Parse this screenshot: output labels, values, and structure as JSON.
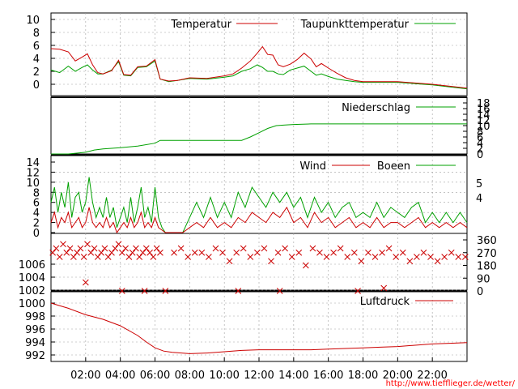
{
  "source_url": "http://www.tiefflieger.de/wetter/",
  "colors": {
    "red": "#cc0000",
    "green": "#00a000",
    "grid": "#a0a0a0"
  },
  "x_axis": {
    "hour_range": [
      0,
      24
    ],
    "tick_labels": [
      "02:00",
      "04:00",
      "06:00",
      "08:00",
      "10:00",
      "12:00",
      "14:00",
      "16:00",
      "18:00",
      "20:00",
      "22:00"
    ]
  },
  "chart_data": [
    {
      "type": "line",
      "name": "temperature",
      "x_unit": "hours",
      "ylim": [
        -2,
        10.5
      ],
      "y_ticks": [
        0,
        2,
        4,
        6,
        8,
        10
      ],
      "legend_position": "top",
      "grid": true,
      "series": [
        {
          "name": "Temperatur",
          "color": "#cc0000",
          "x": [
            0,
            0.5,
            1,
            1.4,
            1.8,
            2.1,
            2.4,
            2.7,
            3,
            3.5,
            3.9,
            4.2,
            4.6,
            5,
            5.5,
            6,
            6.3,
            6.8,
            7.3,
            8,
            9,
            10,
            10.5,
            11,
            11.5,
            11.9,
            12.2,
            12.5,
            12.8,
            13.1,
            13.4,
            13.8,
            14.2,
            14.6,
            15,
            15.3,
            15.6,
            16,
            16.5,
            17,
            17.5,
            18,
            19,
            20,
            21,
            22,
            23,
            24
          ],
          "values": [
            5.5,
            5.4,
            5.0,
            3.6,
            4.2,
            4.7,
            3.0,
            1.8,
            1.6,
            2.1,
            3.7,
            1.5,
            1.4,
            2.7,
            2.8,
            3.8,
            0.8,
            0.5,
            0.6,
            1.0,
            0.9,
            1.3,
            1.6,
            2.5,
            3.6,
            4.8,
            5.8,
            4.6,
            4.5,
            3.0,
            2.7,
            3.1,
            3.8,
            4.8,
            3.9,
            2.7,
            3.2,
            2.5,
            1.7,
            1.0,
            0.6,
            0.4,
            0.4,
            0.4,
            0.2,
            0.0,
            -0.3,
            -0.6
          ]
        },
        {
          "name": "Taupunkttemperatur",
          "color": "#00a000",
          "x": [
            0,
            0.5,
            1,
            1.4,
            1.8,
            2.1,
            2.4,
            2.7,
            3,
            3.5,
            3.9,
            4.2,
            4.6,
            5,
            5.5,
            6,
            6.3,
            6.8,
            7.3,
            8,
            9,
            10,
            10.5,
            11,
            11.5,
            11.9,
            12.2,
            12.5,
            12.8,
            13.1,
            13.4,
            13.8,
            14.2,
            14.6,
            15,
            15.3,
            15.6,
            16,
            16.5,
            17,
            17.5,
            18,
            19,
            20,
            21,
            22,
            23,
            24
          ],
          "values": [
            2.2,
            1.8,
            2.8,
            2.0,
            2.6,
            3.0,
            2.2,
            1.6,
            1.6,
            2.2,
            3.5,
            1.4,
            1.3,
            2.6,
            2.7,
            3.6,
            0.8,
            0.4,
            0.6,
            0.9,
            0.8,
            1.1,
            1.3,
            2.0,
            2.4,
            3.0,
            2.6,
            2.0,
            2.0,
            1.6,
            1.5,
            2.2,
            2.5,
            2.8,
            2.0,
            1.4,
            1.6,
            1.2,
            0.8,
            0.6,
            0.4,
            0.3,
            0.3,
            0.3,
            0.1,
            -0.1,
            -0.4,
            -0.7
          ]
        }
      ]
    },
    {
      "type": "line",
      "name": "precipitation",
      "x_unit": "hours",
      "ylim": [
        0,
        18
      ],
      "y_ticks": [
        0,
        2,
        4,
        6,
        8,
        10,
        12,
        14,
        16,
        18
      ],
      "y_axis_side": "right",
      "legend_position": "top-right",
      "grid": true,
      "series": [
        {
          "name": "Niederschlag",
          "color": "#00a000",
          "x": [
            0,
            1,
            2,
            2.5,
            3,
            4,
            5,
            6,
            6.3,
            7,
            8,
            9,
            10,
            11,
            11.5,
            12,
            12.5,
            13,
            13.5,
            14,
            15,
            16,
            17,
            18,
            20,
            22,
            24
          ],
          "values": [
            0,
            0,
            0.6,
            1.4,
            1.8,
            2.2,
            2.8,
            3.8,
            4.8,
            4.8,
            4.8,
            4.8,
            4.8,
            4.8,
            6.0,
            7.5,
            9.0,
            10.0,
            10.2,
            10.4,
            10.6,
            10.6,
            10.6,
            10.6,
            10.6,
            10.6,
            10.6
          ]
        }
      ]
    },
    {
      "type": "line",
      "name": "wind",
      "x_unit": "hours",
      "ylim": [
        0,
        14
      ],
      "y_ticks": [
        0,
        2,
        4,
        6,
        8,
        10,
        12,
        14
      ],
      "right_tick_labels": [
        "5",
        "4"
      ],
      "legend_position": "top",
      "grid": true,
      "series": [
        {
          "name": "Wind",
          "color": "#cc0000",
          "x": [
            0,
            0.2,
            0.4,
            0.6,
            0.8,
            1,
            1.2,
            1.4,
            1.6,
            1.8,
            2,
            2.2,
            2.4,
            2.6,
            2.8,
            3,
            3.2,
            3.4,
            3.6,
            3.8,
            4,
            4.2,
            4.4,
            4.6,
            4.8,
            5,
            5.2,
            5.4,
            5.6,
            5.8,
            6,
            6.2,
            6.4,
            6.6,
            6.8,
            7.0,
            7.6,
            8,
            8.4,
            8.8,
            9.2,
            9.6,
            10,
            10.4,
            10.8,
            11.2,
            11.6,
            12,
            12.4,
            12.8,
            13.2,
            13.6,
            14,
            14.4,
            14.8,
            15.2,
            15.6,
            16,
            16.4,
            16.8,
            17.2,
            17.6,
            18,
            18.4,
            18.8,
            19.2,
            19.6,
            20,
            20.4,
            20.8,
            21.2,
            21.6,
            22,
            22.4,
            22.8,
            23.2,
            23.6,
            24
          ],
          "values": [
            2,
            4,
            1,
            3,
            2,
            4,
            1,
            2,
            3,
            1,
            2,
            5,
            2,
            1,
            2,
            1,
            3,
            1,
            2,
            0,
            1,
            2,
            1,
            3,
            1,
            2,
            4,
            1,
            2,
            1,
            3,
            1,
            0.5,
            0,
            0,
            0,
            0,
            1,
            2,
            1,
            3,
            1,
            2,
            1,
            3,
            2,
            4,
            3,
            2,
            4,
            3,
            5,
            2,
            3,
            1,
            4,
            2,
            3,
            1,
            2,
            3,
            1,
            2,
            1,
            3,
            1,
            2,
            2,
            1,
            2,
            3,
            1,
            2,
            1,
            2,
            1,
            2,
            1
          ]
        },
        {
          "name": "Boeen",
          "color": "#00a000",
          "x": [
            0,
            0.2,
            0.4,
            0.6,
            0.8,
            1,
            1.2,
            1.4,
            1.6,
            1.8,
            2,
            2.2,
            2.4,
            2.6,
            2.8,
            3,
            3.2,
            3.4,
            3.6,
            3.8,
            4,
            4.2,
            4.4,
            4.6,
            4.8,
            5,
            5.2,
            5.4,
            5.6,
            5.8,
            6,
            6.2,
            6.4,
            6.6,
            6.8,
            7.0,
            7.6,
            8,
            8.4,
            8.8,
            9.2,
            9.6,
            10,
            10.4,
            10.8,
            11.2,
            11.6,
            12,
            12.4,
            12.8,
            13.2,
            13.6,
            14,
            14.4,
            14.8,
            15.2,
            15.6,
            16,
            16.4,
            16.8,
            17.2,
            17.6,
            18,
            18.4,
            18.8,
            19.2,
            19.6,
            20,
            20.4,
            20.8,
            21.2,
            21.6,
            22,
            22.4,
            22.8,
            23.2,
            23.6,
            24
          ],
          "values": [
            6,
            9,
            4,
            8,
            5,
            10,
            3,
            7,
            8,
            4,
            6,
            11,
            6,
            3,
            5,
            3,
            7,
            3,
            5,
            1,
            3,
            5,
            2,
            7,
            2,
            5,
            9,
            3,
            5,
            2,
            9,
            3,
            1,
            0,
            0,
            0,
            0,
            3,
            6,
            3,
            7,
            3,
            6,
            3,
            8,
            5,
            9,
            7,
            5,
            8,
            6,
            8,
            5,
            7,
            3,
            7,
            4,
            6,
            3,
            5,
            6,
            3,
            4,
            3,
            6,
            3,
            5,
            4,
            3,
            5,
            6,
            2,
            4,
            2,
            4,
            2,
            4,
            2
          ]
        }
      ]
    },
    {
      "type": "scatter",
      "name": "wind_direction",
      "x_unit": "hours",
      "ylim": [
        0,
        360
      ],
      "y_ticks": [
        0,
        90,
        180,
        270,
        360
      ],
      "y_axis_side": "right",
      "marker": "x",
      "color": "#cc0000",
      "points": [
        [
          0.1,
          270
        ],
        [
          0.3,
          300
        ],
        [
          0.5,
          240
        ],
        [
          0.7,
          330
        ],
        [
          0.9,
          270
        ],
        [
          1.1,
          300
        ],
        [
          1.3,
          240
        ],
        [
          1.5,
          270
        ],
        [
          1.7,
          300
        ],
        [
          1.9,
          240
        ],
        [
          2.1,
          330
        ],
        [
          2.3,
          270
        ],
        [
          2.5,
          300
        ],
        [
          2.7,
          240
        ],
        [
          2.9,
          270
        ],
        [
          3.1,
          300
        ],
        [
          3.3,
          240
        ],
        [
          3.5,
          270
        ],
        [
          3.7,
          300
        ],
        [
          3.9,
          330
        ],
        [
          4.1,
          270
        ],
        [
          4.3,
          300
        ],
        [
          4.5,
          240
        ],
        [
          4.7,
          270
        ],
        [
          4.9,
          300
        ],
        [
          5.1,
          240
        ],
        [
          5.3,
          270
        ],
        [
          5.5,
          300
        ],
        [
          5.7,
          270
        ],
        [
          5.9,
          240
        ],
        [
          6.1,
          300
        ],
        [
          6.3,
          270
        ],
        [
          7.1,
          270
        ],
        [
          7.5,
          300
        ],
        [
          7.9,
          240
        ],
        [
          8.3,
          270
        ],
        [
          8.7,
          270
        ],
        [
          9.1,
          240
        ],
        [
          9.5,
          300
        ],
        [
          9.9,
          270
        ],
        [
          10.3,
          210
        ],
        [
          10.7,
          270
        ],
        [
          11.1,
          300
        ],
        [
          11.5,
          240
        ],
        [
          11.9,
          270
        ],
        [
          12.3,
          300
        ],
        [
          12.7,
          210
        ],
        [
          13.1,
          270
        ],
        [
          13.5,
          300
        ],
        [
          13.9,
          240
        ],
        [
          14.3,
          270
        ],
        [
          14.7,
          180
        ],
        [
          15.1,
          300
        ],
        [
          15.5,
          270
        ],
        [
          15.9,
          240
        ],
        [
          16.3,
          270
        ],
        [
          16.7,
          300
        ],
        [
          17.1,
          240
        ],
        [
          17.5,
          270
        ],
        [
          17.9,
          210
        ],
        [
          18.3,
          270
        ],
        [
          18.7,
          240
        ],
        [
          19.1,
          270
        ],
        [
          19.5,
          300
        ],
        [
          19.9,
          240
        ],
        [
          20.3,
          270
        ],
        [
          20.7,
          210
        ],
        [
          21.1,
          240
        ],
        [
          21.5,
          270
        ],
        [
          21.9,
          240
        ],
        [
          22.3,
          210
        ],
        [
          22.7,
          240
        ],
        [
          23.1,
          270
        ],
        [
          23.5,
          240
        ],
        [
          23.9,
          240
        ],
        [
          2.0,
          60
        ],
        [
          4.1,
          0
        ],
        [
          5.4,
          0
        ],
        [
          6.6,
          0
        ],
        [
          10.8,
          0
        ],
        [
          13.2,
          0
        ],
        [
          17.7,
          0
        ],
        [
          19.2,
          20
        ]
      ]
    },
    {
      "type": "line",
      "name": "pressure",
      "x_unit": "hours",
      "ylim": [
        991,
        1007
      ],
      "y_ticks": [
        992,
        994,
        996,
        998,
        1000,
        1002,
        1004,
        1006
      ],
      "legend_position": "top-right",
      "grid": true,
      "series": [
        {
          "name": "Luftdruck",
          "color": "#cc0000",
          "x": [
            0,
            1,
            2,
            3,
            4,
            5,
            5.5,
            6,
            6.5,
            7,
            8,
            9,
            10,
            11,
            12,
            13,
            14,
            15,
            16,
            17,
            18,
            19,
            20,
            21,
            22,
            23,
            24
          ],
          "values": [
            1000.0,
            999.2,
            998.2,
            997.5,
            996.5,
            995.0,
            994.0,
            993.1,
            992.6,
            992.4,
            992.2,
            992.3,
            992.5,
            992.7,
            992.8,
            992.8,
            992.8,
            992.8,
            992.9,
            993.0,
            993.1,
            993.2,
            993.3,
            993.5,
            993.7,
            993.8,
            993.9
          ]
        }
      ]
    }
  ]
}
